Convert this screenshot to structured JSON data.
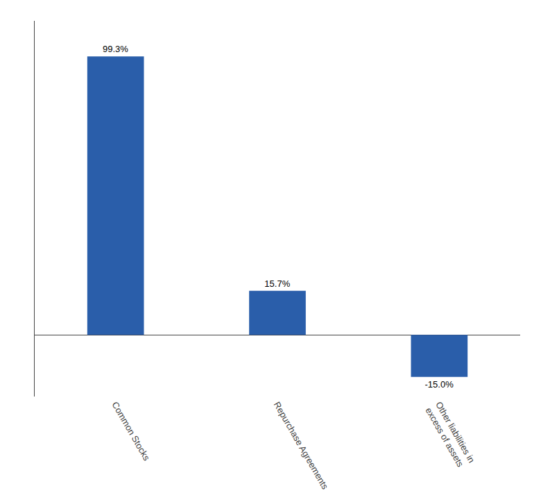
{
  "chart_data": {
    "type": "bar",
    "categories": [
      "Common Stocks",
      "Repurchase Agreements",
      "Other liabilities in\nexcess of assets"
    ],
    "values": [
      99.3,
      15.7,
      -15.0
    ],
    "value_labels": [
      "99.3%",
      "15.7%",
      "-15.0%"
    ],
    "data_labels": true,
    "color": "#2a5eaa",
    "ylim": [
      -22,
      112
    ],
    "grid": false,
    "tick_labels": "x"
  }
}
